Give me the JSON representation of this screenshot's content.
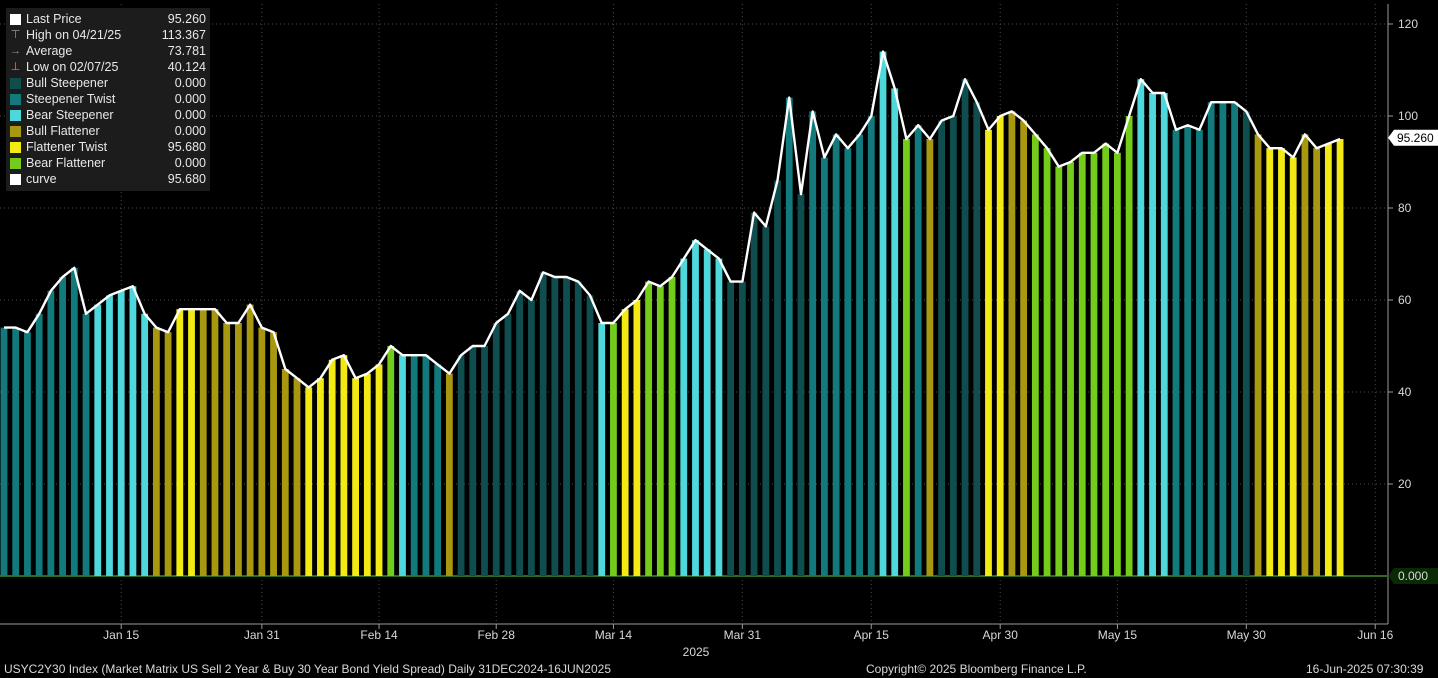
{
  "legend": [
    {
      "label": "Last Price",
      "value": "95.260",
      "color": "#ffffff",
      "glyph": "box"
    },
    {
      "label": "High on 04/21/25",
      "value": "113.367",
      "color": "#9a9a9a",
      "glyph": "high"
    },
    {
      "label": "Average",
      "value": "73.781",
      "color": "#9a9a9a",
      "glyph": "avg"
    },
    {
      "label": "Low on 02/07/25",
      "value": "40.124",
      "color": "#9a9a9a",
      "glyph": "low"
    },
    {
      "label": "Bull Steepener",
      "value": "0.000",
      "color": "#0f4d4f",
      "glyph": "box"
    },
    {
      "label": "Steepener Twist",
      "value": "0.000",
      "color": "#127a7d",
      "glyph": "box"
    },
    {
      "label": "Bear Steepener",
      "value": "0.000",
      "color": "#4ed8dc",
      "glyph": "box"
    },
    {
      "label": "Bull Flattener",
      "value": "0.000",
      "color": "#a8980f",
      "glyph": "box"
    },
    {
      "label": "Flattener Twist",
      "value": "95.680",
      "color": "#f4ea13",
      "glyph": "box"
    },
    {
      "label": "Bear Flattener",
      "value": "0.000",
      "color": "#74cc1a",
      "glyph": "box"
    },
    {
      "label": "curve",
      "value": "95.680",
      "color": "#ffffff",
      "glyph": "box"
    }
  ],
  "footer": {
    "left": "USYC2Y30 Index (Market Matrix US Sell 2 Year & Buy 30 Year Bond Yield Spread)  Daily 31DEC2024-16JUN2025",
    "center": "Copyright© 2025 Bloomberg Finance L.P.",
    "right": "16-Jun-2025 07:30:39"
  },
  "chart_data": {
    "type": "bar",
    "ylim": [
      -10,
      124
    ],
    "yticks": [
      20,
      40,
      60,
      80,
      100,
      120
    ],
    "grid": true,
    "legend_position": "top-left",
    "last_price_label": "95.260",
    "zero_label": "0.000",
    "year_label": "2025",
    "xticks": [
      {
        "label": "Jan 15",
        "index": 10
      },
      {
        "label": "Jan 31",
        "index": 22
      },
      {
        "label": "Feb 14",
        "index": 32
      },
      {
        "label": "Feb 28",
        "index": 42
      },
      {
        "label": "Mar 14",
        "index": 52
      },
      {
        "label": "Mar 31",
        "index": 63
      },
      {
        "label": "Apr 15",
        "index": 74
      },
      {
        "label": "Apr 30",
        "index": 85
      },
      {
        "label": "May 15",
        "index": 95
      },
      {
        "label": "May 30",
        "index": 106
      },
      {
        "label": "Jun 16",
        "index": 117
      }
    ],
    "category_colors": {
      "Bull Steepener": "#0f4d4f",
      "Steepener Twist": "#127a7d",
      "Bear Steepener": "#4ed8dc",
      "Bull Flattener": "#a8980f",
      "Flattener Twist": "#f4ea13",
      "Bear Flattener": "#74cc1a"
    },
    "values": [
      54,
      54,
      53,
      57,
      62,
      65,
      67,
      57,
      59,
      61,
      62,
      63,
      57,
      54,
      53,
      58,
      58,
      58,
      58,
      55,
      55,
      59,
      54,
      53,
      45,
      43,
      41,
      43,
      47,
      48,
      43,
      44,
      46,
      50,
      48,
      48,
      48,
      46,
      44,
      48,
      50,
      50,
      55,
      57,
      62,
      60,
      66,
      65,
      65,
      64,
      61,
      55,
      55,
      58,
      60,
      64,
      63,
      65,
      69,
      73,
      71,
      69,
      64,
      64,
      79,
      76,
      86,
      104,
      83,
      101,
      91,
      96,
      93,
      96,
      100,
      114,
      106,
      95,
      98,
      95,
      99,
      100,
      108,
      103,
      97,
      100,
      101,
      99,
      96,
      93,
      89,
      90,
      92,
      92,
      94,
      92,
      100,
      108,
      105,
      105,
      97,
      98,
      97,
      103,
      103,
      103,
      101,
      96,
      93,
      93,
      91,
      96,
      93,
      94,
      95
    ],
    "series_category": [
      "Steepener Twist",
      "Steepener Twist",
      "Steepener Twist",
      "Steepener Twist",
      "Steepener Twist",
      "Steepener Twist",
      "Steepener Twist",
      "Steepener Twist",
      "Bear Steepener",
      "Bear Steepener",
      "Bear Steepener",
      "Bear Steepener",
      "Bear Steepener",
      "Bull Flattener",
      "Bull Flattener",
      "Flattener Twist",
      "Flattener Twist",
      "Bull Flattener",
      "Bull Flattener",
      "Bull Flattener",
      "Bull Flattener",
      "Bull Flattener",
      "Bull Flattener",
      "Bull Flattener",
      "Bull Flattener",
      "Bull Flattener",
      "Flattener Twist",
      "Flattener Twist",
      "Flattener Twist",
      "Flattener Twist",
      "Flattener Twist",
      "Flattener Twist",
      "Flattener Twist",
      "Bear Flattener",
      "Bear Steepener",
      "Steepener Twist",
      "Steepener Twist",
      "Steepener Twist",
      "Bull Flattener",
      "Bull Steepener",
      "Bull Steepener",
      "Bull Steepener",
      "Bull Steepener",
      "Bull Steepener",
      "Bull Steepener",
      "Bull Steepener",
      "Bull Steepener",
      "Bull Steepener",
      "Bull Steepener",
      "Bull Steepener",
      "Bull Steepener",
      "Bear Steepener",
      "Bear Flattener",
      "Flattener Twist",
      "Flattener Twist",
      "Bear Flattener",
      "Bear Flattener",
      "Bear Flattener",
      "Bear Steepener",
      "Bear Steepener",
      "Bear Steepener",
      "Bear Steepener",
      "Bull Steepener",
      "Bull Steepener",
      "Bull Steepener",
      "Bull Steepener",
      "Bull Steepener",
      "Steepener Twist",
      "Bull Steepener",
      "Steepener Twist",
      "Steepener Twist",
      "Steepener Twist",
      "Steepener Twist",
      "Steepener Twist",
      "Steepener Twist",
      "Bear Steepener",
      "Bear Steepener",
      "Bear Flattener",
      "Steepener Twist",
      "Bull Flattener",
      "Bull Steepener",
      "Bull Steepener",
      "Bull Steepener",
      "Bull Steepener",
      "Flattener Twist",
      "Flattener Twist",
      "Bull Flattener",
      "Bull Flattener",
      "Bear Flattener",
      "Bear Flattener",
      "Bear Flattener",
      "Bear Flattener",
      "Bear Flattener",
      "Bear Flattener",
      "Bear Flattener",
      "Bear Flattener",
      "Bear Flattener",
      "Bear Steepener",
      "Bear Steepener",
      "Bear Steepener",
      "Steepener Twist",
      "Steepener Twist",
      "Steepener Twist",
      "Steepener Twist",
      "Steepener Twist",
      "Steepener Twist",
      "Bull Steepener",
      "Bull Flattener",
      "Flattener Twist",
      "Flattener Twist",
      "Flattener Twist",
      "Bull Flattener",
      "Bull Flattener",
      "Flattener Twist",
      "Flattener Twist"
    ]
  }
}
